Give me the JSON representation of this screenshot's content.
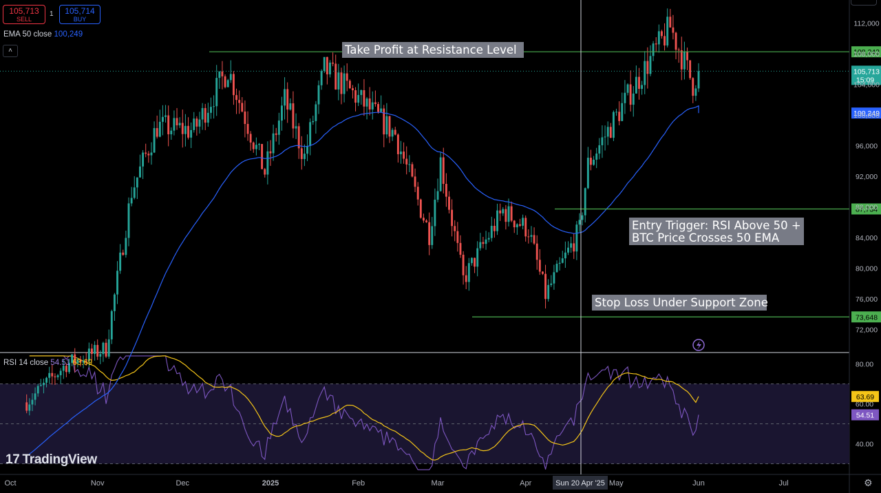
{
  "order_panel": {
    "sell_price": "105,713",
    "sell_label": "SELL",
    "spread": "1",
    "buy_price": "105,714",
    "buy_label": "BUY"
  },
  "indicators": {
    "ema_label": "EMA 50 close",
    "ema_value": "100,249",
    "rsi_label": "RSI 14 close",
    "rsi_value": "54.51",
    "rsi_ma_value": "63.69"
  },
  "branding": {
    "name": "TradingView"
  },
  "icons": [
    "chevron-up-icon",
    "tradingview-logo-icon",
    "lightning-icon",
    "gear-icon"
  ],
  "colors": {
    "background": "#000000",
    "up_candle": "#26a69a",
    "down_candle": "#ef5350",
    "ema_line": "#2962ff",
    "level_line": "#4caf50",
    "rsi_line": "#7e57c2",
    "rsi_ma_line": "#f5c518",
    "annotation_box": "#787b86"
  },
  "chart_data": [
    {
      "type": "candlestick",
      "symbol_pair_hint": "BTC",
      "x_ticks": [
        "Oct",
        "Nov",
        "Dec",
        "2025",
        "Feb",
        "Mar",
        "Apr",
        "May",
        "Jun",
        "Jul"
      ],
      "crosshair_date": "Sun 20 Apr '25",
      "y_ticks": [
        72000,
        76000,
        80000,
        84000,
        88000,
        92000,
        96000,
        100000,
        104000,
        108000,
        112000
      ],
      "y_tick_labels": [
        "72,000",
        "76,000",
        "80,000",
        "84,000",
        "88,000",
        "92,000",
        "96,000",
        "100,000",
        "104,000",
        "108,000",
        "112,000"
      ],
      "ylim": [
        69000,
        115000
      ],
      "price_levels": [
        {
          "value": 108243,
          "label": "108,243",
          "name": "Resistance"
        },
        {
          "value": 87734,
          "label": "87,734",
          "name": "Entry"
        },
        {
          "value": 73648,
          "label": "73,648",
          "name": "Support"
        }
      ],
      "last_price": {
        "value": 105713,
        "label": "105,713",
        "countdown": "15:09"
      },
      "ema50": {
        "value": 100249,
        "label": "100,249"
      },
      "annotations": [
        "Take Profit at Resistance Level",
        "Entry Trigger: RSI Above 50 + BTC Price Crosses 50 EMA",
        "Stop Loss Under Support Zone"
      ],
      "closes_approx": [
        {
          "date": "2024-10-07",
          "close": 62500
        },
        {
          "date": "2024-10-21",
          "close": 67500
        },
        {
          "date": "2024-11-04",
          "close": 69500
        },
        {
          "date": "2024-11-13",
          "close": 90000
        },
        {
          "date": "2024-11-22",
          "close": 98500
        },
        {
          "date": "2024-12-05",
          "close": 98000
        },
        {
          "date": "2024-12-17",
          "close": 106000
        },
        {
          "date": "2024-12-30",
          "close": 92500
        },
        {
          "date": "2025-01-06",
          "close": 102000
        },
        {
          "date": "2025-01-13",
          "close": 94500
        },
        {
          "date": "2025-01-20",
          "close": 106000
        },
        {
          "date": "2025-01-31",
          "close": 102500
        },
        {
          "date": "2025-02-14",
          "close": 97500
        },
        {
          "date": "2025-02-26",
          "close": 84500
        },
        {
          "date": "2025-03-02",
          "close": 94000
        },
        {
          "date": "2025-03-10",
          "close": 78500
        },
        {
          "date": "2025-03-24",
          "close": 87500
        },
        {
          "date": "2025-04-02",
          "close": 85000
        },
        {
          "date": "2025-04-08",
          "close": 76500
        },
        {
          "date": "2025-04-20",
          "close": 85000
        },
        {
          "date": "2025-04-23",
          "close": 93500
        },
        {
          "date": "2025-05-08",
          "close": 103000
        },
        {
          "date": "2025-05-22",
          "close": 111500
        },
        {
          "date": "2025-05-30",
          "close": 104000
        },
        {
          "date": "2025-06-01",
          "close": 105713
        }
      ]
    },
    {
      "type": "line",
      "name": "RSI 14 close",
      "y_ticks": [
        40,
        60,
        80
      ],
      "y_tick_labels": [
        "40.00",
        "60.00",
        "80.00"
      ],
      "bands": [
        30,
        50,
        70
      ],
      "ylim": [
        25,
        85
      ],
      "last_values": {
        "rsi": 54.51,
        "ma": 63.69
      }
    }
  ]
}
